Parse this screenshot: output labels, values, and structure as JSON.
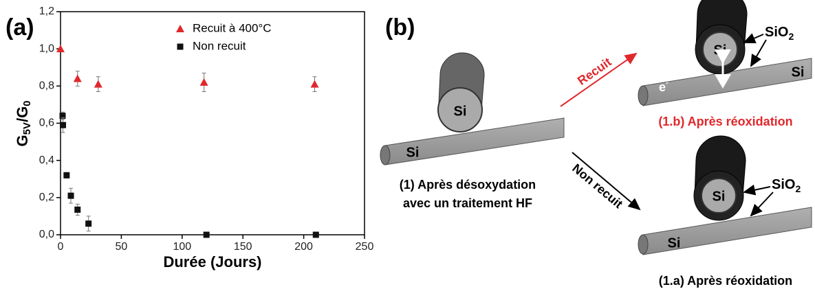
{
  "chart_data": {
    "type": "scatter",
    "panel_label": "(a)",
    "xlabel": "Durée (Jours)",
    "ylabel": [
      "G",
      "5V",
      "/G",
      "0"
    ],
    "xlim": [
      0,
      250
    ],
    "xticks": [
      0,
      50,
      100,
      150,
      200,
      250
    ],
    "ylim": [
      0,
      1.2
    ],
    "yticks": [
      {
        "value": 0,
        "label": "0,0"
      },
      {
        "value": 0.2,
        "label": "0,2"
      },
      {
        "value": 0.4,
        "label": "0,4"
      },
      {
        "value": 0.6,
        "label": "0,6"
      },
      {
        "value": 0.8,
        "label": "0,8"
      },
      {
        "value": 1.0,
        "label": "1,0"
      },
      {
        "value": 1.2,
        "label": "1,2"
      }
    ],
    "series": [
      {
        "name": "Recuit à 400°C",
        "color": "#e0282c",
        "marker": "triangle",
        "x": [
          0,
          14,
          31,
          118,
          209
        ],
        "values": [
          1.0,
          0.84,
          0.81,
          0.82,
          0.81
        ],
        "errors": [
          0,
          0.04,
          0.04,
          0.05,
          0.04
        ]
      },
      {
        "name": "Non recuit",
        "color": "#111111",
        "marker": "square",
        "x": [
          1.7,
          2,
          5,
          8.5,
          14,
          23,
          120,
          210
        ],
        "values": [
          0.64,
          0.59,
          0.32,
          0.21,
          0.135,
          0.06,
          0.0,
          0.0
        ],
        "errors": [
          0.02,
          0.04,
          0.015,
          0.04,
          0.03,
          0.04,
          0,
          0
        ]
      }
    ]
  },
  "diagram": {
    "panel_label": "(b)",
    "center_wire": "Si",
    "center_rod": "Si",
    "caption_1": [
      "(1) Après désoxydation",
      "avec un traitement HF"
    ],
    "arrow_top": "Recuit",
    "arrow_bottom": "Non recuit",
    "top_rod": "Si",
    "top_wire": "Si",
    "top_oxide": [
      "SiO",
      "2"
    ],
    "top_electron": [
      "e",
      "-"
    ],
    "caption_1b": "(1.b) Après réoxidation",
    "bottom_rod": "Si",
    "bottom_wire": "Si",
    "bottom_oxide": [
      "SiO",
      "2"
    ],
    "caption_1a": "(1.a) Après réoxidation"
  }
}
